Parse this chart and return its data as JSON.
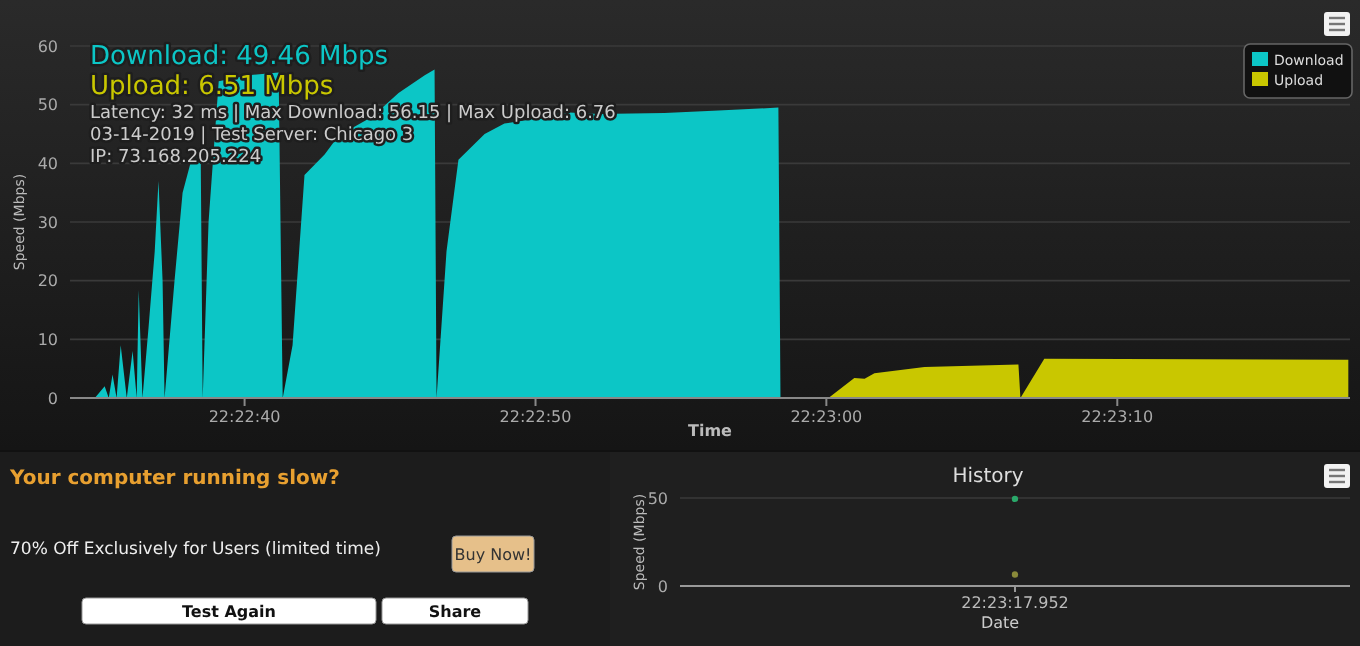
{
  "chart_data": [
    {
      "type": "area",
      "xlabel": "Time",
      "ylabel": "Speed (Mbps)",
      "xlim": [
        22.376111,
        22.388333
      ],
      "xticks": [
        {
          "value": 22.377778,
          "label": "22:22:40"
        },
        {
          "value": 22.380556,
          "label": "22:22:50"
        },
        {
          "value": 22.383333,
          "label": "22:23:00"
        },
        {
          "value": 22.386111,
          "label": "22:23:10"
        }
      ],
      "ylim": [
        0,
        60
      ],
      "yticks": [
        0,
        10,
        20,
        30,
        40,
        50,
        60
      ],
      "grid": "y",
      "legend": "top right",
      "annotations": [
        "Download: 49.46 Mbps",
        "Upload: 6.51 Mbps",
        "Latency: 32 ms | Max Download: 56.15 | Max Upload: 6.76",
        "03-14-2019 | Test Server: Chicago 3",
        "IP: 73.168.205.224"
      ],
      "series": [
        {
          "name": "Download",
          "color": "#0cc6c6",
          "x": [
            22.376348,
            22.376442,
            22.376481,
            22.376517,
            22.376556,
            22.376595,
            22.376653,
            22.376709,
            22.376748,
            22.376767,
            22.376803,
            22.376861,
            22.37692,
            22.376956,
            22.376995,
            22.377014,
            22.377109,
            22.377186,
            22.377261,
            22.377359,
            22.377378,
            22.377434,
            22.377531,
            22.377817,
            22.378103,
            22.378142,
            22.378236,
            22.37835,
            22.378542,
            22.378675,
            22.379,
            22.379248,
            22.379498,
            22.379592,
            22.379611,
            22.379706,
            22.37982,
            22.38007,
            22.380259,
            22.380528,
            22.380834,
            22.381156,
            22.381786,
            22.382303,
            22.382875,
            22.382895
          ],
          "values": [
            0,
            2,
            0,
            4,
            0,
            9,
            0,
            8,
            0,
            18.4,
            0,
            12,
            25,
            37,
            20,
            0,
            20,
            35,
            40,
            41.6,
            0,
            30,
            54,
            55,
            55.5,
            0,
            9,
            38,
            41.5,
            44.7,
            48,
            52,
            55,
            56,
            0,
            25,
            40.6,
            45,
            46.8,
            47.5,
            48.7,
            48.4,
            48.6,
            49,
            49.5,
            0
          ]
        },
        {
          "name": "Upload",
          "color": "#c9c700",
          "x": [
            22.383353,
            22.3836,
            22.383698,
            22.383792,
            22.38427,
            22.385167,
            22.385186,
            22.385414,
            22.386884,
            22.388317
          ],
          "values": [
            0,
            3.4,
            3.3,
            4.2,
            5.3,
            5.7,
            0,
            6.7,
            6.6,
            6.5
          ]
        }
      ]
    },
    {
      "type": "other",
      "title": "Your computer running slow?",
      "annotations": [
        "70% Off Exclusively for Users (limited time)",
        "Buy Now!",
        "Test Again",
        "Share"
      ]
    },
    {
      "type": "scatter",
      "title": "History",
      "xlabel": "Date",
      "ylabel": "Speed (Mbps)",
      "categories": [
        "22:23:17.952"
      ],
      "ylim": [
        0,
        50
      ],
      "yticks": [
        0,
        50
      ],
      "grid": "y",
      "marker": "circle",
      "series": [
        {
          "color": "#2aa86a",
          "values": [
            49.5
          ]
        },
        {
          "color": "#8a8a3a",
          "values": [
            6.5
          ]
        }
      ]
    }
  ]
}
